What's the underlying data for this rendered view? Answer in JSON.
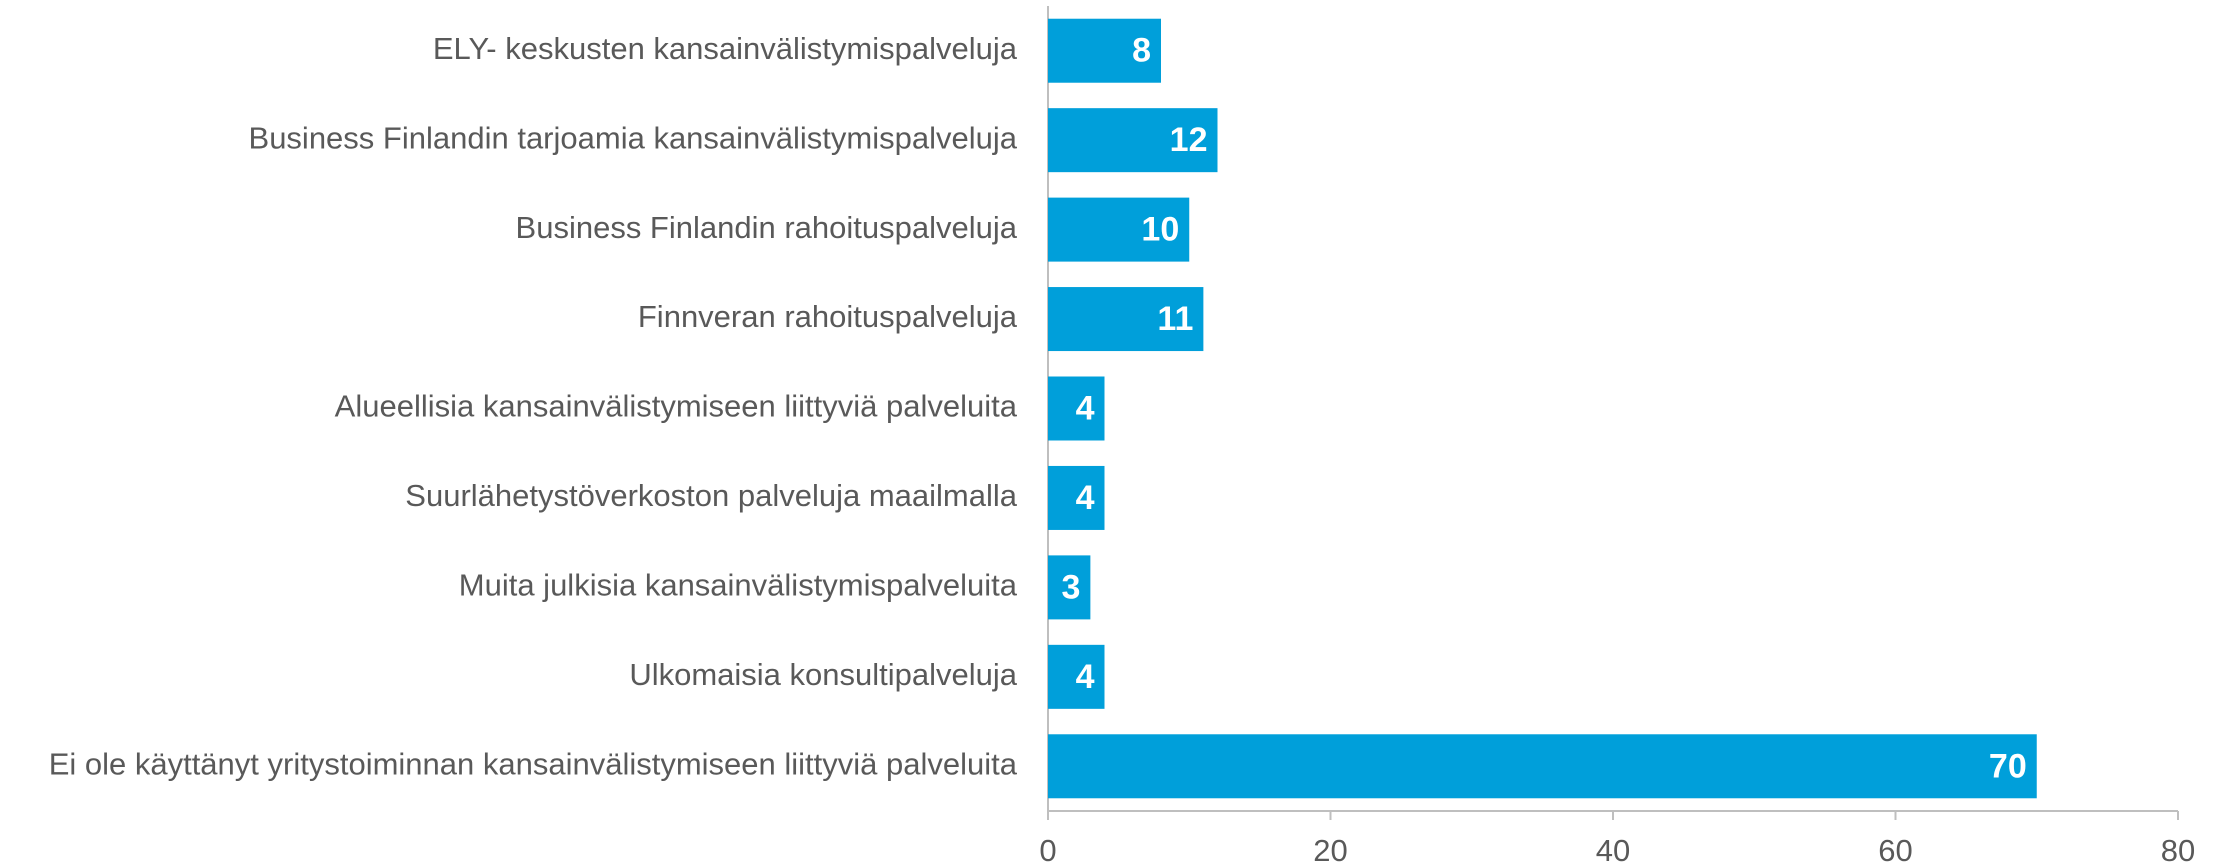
{
  "chart_data": {
    "type": "barh",
    "categories": [
      "ELY- keskusten kansainvälistymispalveluja",
      "Business Finlandin tarjoamia kansainvälistymispalveluja",
      "Business Finlandin rahoituspalveluja",
      "Finnveran rahoituspalveluja",
      "Alueellisia kansainvälistymiseen liittyviä palveluita",
      "Suurlähetystöverkoston palveluja maailmalla",
      "Muita julkisia kansainvälistymispalveluita",
      "Ulkomaisia konsultipalveluja",
      "Ei ole käyttänyt yritystoiminnan kansainvälistymiseen liittyviä palveluita"
    ],
    "values": [
      8,
      12,
      10,
      11,
      4,
      4,
      3,
      4,
      70
    ],
    "color": "#009fda",
    "xlim": [
      0,
      80
    ],
    "xticks": [
      0,
      20,
      40,
      60,
      80
    ],
    "grid": false
  }
}
